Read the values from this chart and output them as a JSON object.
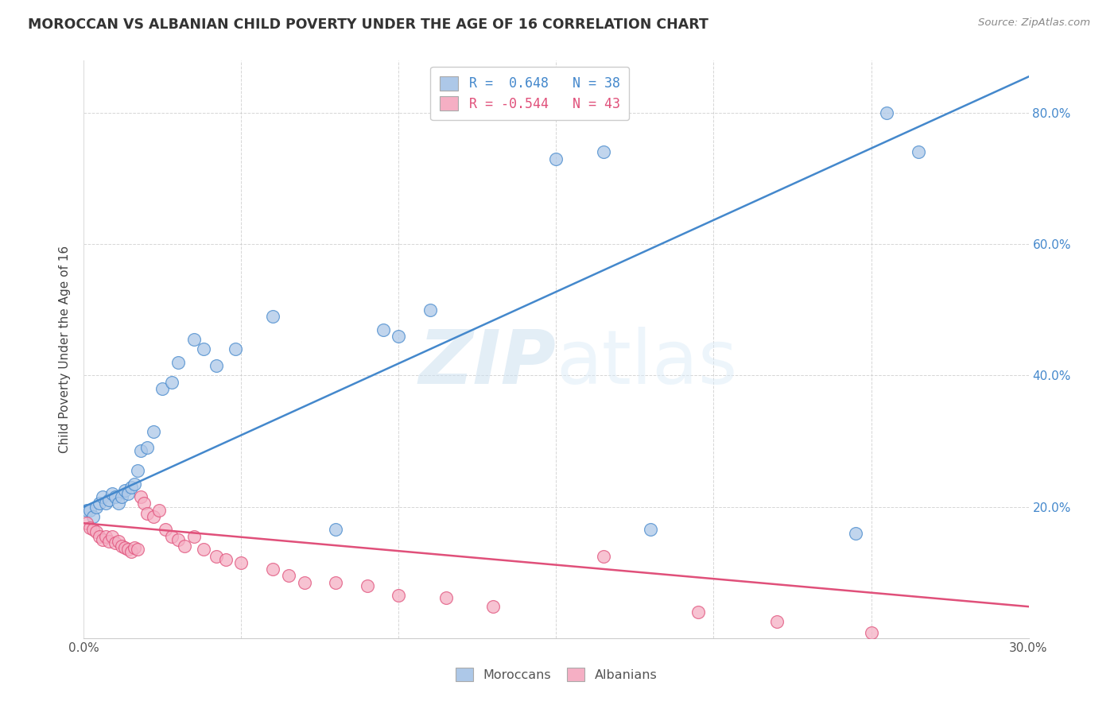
{
  "title": "MOROCCAN VS ALBANIAN CHILD POVERTY UNDER THE AGE OF 16 CORRELATION CHART",
  "source": "Source: ZipAtlas.com",
  "ylabel": "Child Poverty Under the Age of 16",
  "xlim": [
    0.0,
    0.3
  ],
  "ylim": [
    0.0,
    0.88
  ],
  "r_moroccan": 0.648,
  "n_moroccan": 38,
  "r_albanian": -0.544,
  "n_albanian": 43,
  "moroccan_color": "#adc8e8",
  "albanian_color": "#f5afc4",
  "trendline_moroccan_color": "#4488cc",
  "trendline_albanian_color": "#e0507a",
  "background_color": "#ffffff",
  "grid_color": "#cccccc",
  "moroccan_x": [
    0.001,
    0.002,
    0.003,
    0.004,
    0.005,
    0.006,
    0.007,
    0.008,
    0.009,
    0.01,
    0.011,
    0.012,
    0.013,
    0.014,
    0.015,
    0.016,
    0.017,
    0.018,
    0.02,
    0.022,
    0.025,
    0.028,
    0.03,
    0.035,
    0.038,
    0.042,
    0.048,
    0.06,
    0.08,
    0.095,
    0.1,
    0.11,
    0.15,
    0.165,
    0.18,
    0.245,
    0.255,
    0.265
  ],
  "moroccan_y": [
    0.195,
    0.195,
    0.185,
    0.2,
    0.205,
    0.215,
    0.205,
    0.21,
    0.22,
    0.215,
    0.205,
    0.215,
    0.225,
    0.22,
    0.23,
    0.235,
    0.255,
    0.285,
    0.29,
    0.315,
    0.38,
    0.39,
    0.42,
    0.455,
    0.44,
    0.415,
    0.44,
    0.49,
    0.165,
    0.47,
    0.46,
    0.5,
    0.73,
    0.74,
    0.165,
    0.16,
    0.8,
    0.74
  ],
  "albanian_x": [
    0.001,
    0.002,
    0.003,
    0.004,
    0.005,
    0.006,
    0.007,
    0.008,
    0.009,
    0.01,
    0.011,
    0.012,
    0.013,
    0.014,
    0.015,
    0.016,
    0.017,
    0.018,
    0.019,
    0.02,
    0.022,
    0.024,
    0.026,
    0.028,
    0.03,
    0.032,
    0.035,
    0.038,
    0.042,
    0.045,
    0.05,
    0.06,
    0.065,
    0.07,
    0.08,
    0.09,
    0.1,
    0.115,
    0.13,
    0.165,
    0.195,
    0.22,
    0.25
  ],
  "albanian_y": [
    0.175,
    0.168,
    0.165,
    0.162,
    0.155,
    0.15,
    0.155,
    0.148,
    0.155,
    0.145,
    0.148,
    0.14,
    0.138,
    0.135,
    0.132,
    0.138,
    0.135,
    0.215,
    0.205,
    0.19,
    0.185,
    0.195,
    0.165,
    0.155,
    0.15,
    0.14,
    0.155,
    0.135,
    0.125,
    0.12,
    0.115,
    0.105,
    0.095,
    0.085,
    0.085,
    0.08,
    0.065,
    0.062,
    0.048,
    0.125,
    0.04,
    0.025,
    0.008
  ],
  "trendline_moroccan": [
    0.2,
    0.855
  ],
  "trendline_albanian": [
    0.175,
    0.048
  ],
  "watermark_zip": "ZIP",
  "watermark_atlas": "atlas",
  "legend_moroccan": "Moroccans",
  "legend_albanian": "Albanians"
}
